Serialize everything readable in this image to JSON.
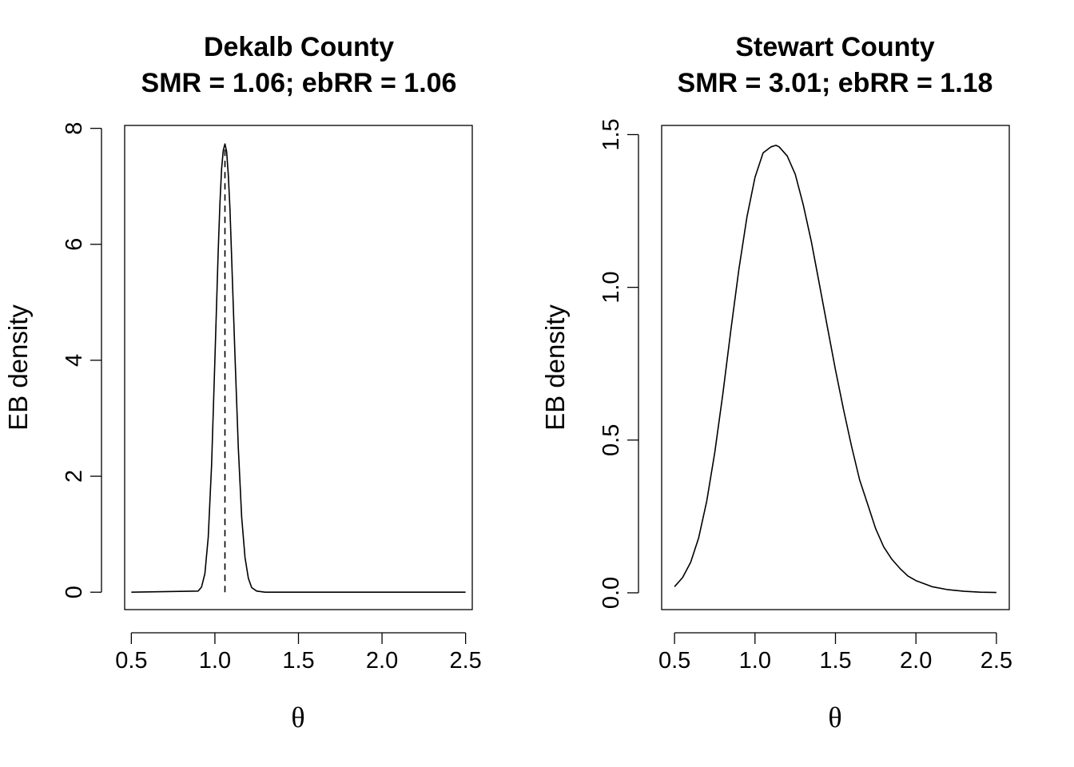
{
  "chart_data": [
    {
      "type": "line",
      "title": "Dekalb County",
      "subtitle": "SMR = 1.06; ebRR = 1.06",
      "xlabel": "θ",
      "ylabel": "EB density",
      "xlim": [
        0.46,
        2.54
      ],
      "ylim": [
        -0.3,
        8.05
      ],
      "xticks": [
        0.5,
        1.0,
        1.5,
        2.0,
        2.5
      ],
      "xtick_labels": [
        "0.5",
        "1.0",
        "1.5",
        "2.0",
        "2.5"
      ],
      "yticks": [
        0,
        2,
        4,
        6,
        8
      ],
      "ytick_labels": [
        "0",
        "2",
        "4",
        "6",
        "8"
      ],
      "grid": false,
      "series": [
        {
          "style": "solid",
          "x": [
            0.5,
            0.9,
            0.92,
            0.94,
            0.96,
            0.98,
            1.0,
            1.02,
            1.03,
            1.04,
            1.05,
            1.06,
            1.07,
            1.08,
            1.09,
            1.1,
            1.12,
            1.14,
            1.16,
            1.18,
            1.2,
            1.22,
            1.25,
            1.3,
            2.5
          ],
          "y": [
            0,
            0.02,
            0.09,
            0.32,
            0.95,
            2.2,
            4.0,
            5.9,
            6.7,
            7.3,
            7.62,
            7.73,
            7.6,
            7.2,
            6.6,
            5.8,
            4.1,
            2.5,
            1.3,
            0.6,
            0.24,
            0.08,
            0.02,
            0.0,
            0
          ]
        },
        {
          "style": "dashed",
          "x": [
            1.06,
            1.06
          ],
          "y": [
            0,
            7.73
          ]
        }
      ]
    },
    {
      "type": "line",
      "title": "Stewart County",
      "subtitle": "SMR = 3.01; ebRR = 1.18",
      "xlabel": "θ",
      "ylabel": "EB density",
      "xlim": [
        0.42,
        2.58
      ],
      "ylim": [
        -0.055,
        1.53
      ],
      "xticks": [
        0.5,
        1.0,
        1.5,
        2.0,
        2.5
      ],
      "xtick_labels": [
        "0.5",
        "1.0",
        "1.5",
        "2.0",
        "2.5"
      ],
      "yticks": [
        0.0,
        0.5,
        1.0,
        1.5
      ],
      "ytick_labels": [
        "0.0",
        "0.5",
        "1.0",
        "1.5"
      ],
      "grid": false,
      "series": [
        {
          "style": "solid",
          "x": [
            0.5,
            0.55,
            0.6,
            0.65,
            0.7,
            0.75,
            0.8,
            0.85,
            0.9,
            0.95,
            1.0,
            1.05,
            1.1,
            1.13,
            1.15,
            1.2,
            1.25,
            1.3,
            1.35,
            1.4,
            1.45,
            1.5,
            1.55,
            1.6,
            1.65,
            1.7,
            1.75,
            1.8,
            1.85,
            1.9,
            1.95,
            2.0,
            2.1,
            2.2,
            2.3,
            2.4,
            2.5
          ],
          "y": [
            0.02,
            0.05,
            0.1,
            0.18,
            0.3,
            0.46,
            0.65,
            0.86,
            1.06,
            1.23,
            1.36,
            1.44,
            1.46,
            1.465,
            1.46,
            1.43,
            1.37,
            1.27,
            1.15,
            1.01,
            0.87,
            0.73,
            0.6,
            0.48,
            0.37,
            0.29,
            0.21,
            0.15,
            0.11,
            0.08,
            0.055,
            0.04,
            0.02,
            0.01,
            0.005,
            0.002,
            0.001
          ]
        }
      ]
    }
  ]
}
